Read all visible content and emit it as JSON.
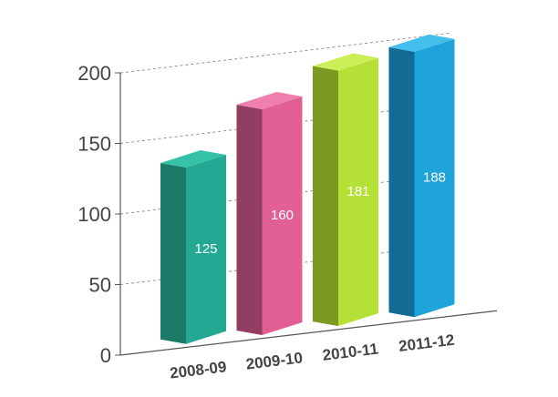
{
  "chart_data": {
    "type": "bar",
    "title": "",
    "xlabel": "",
    "ylabel": "",
    "categories": [
      "2008-09",
      "2009-10",
      "2010-11",
      "2011-12"
    ],
    "values": [
      125,
      160,
      181,
      188
    ],
    "data_labels": [
      "125",
      "160",
      "181",
      "188"
    ],
    "y_ticks": [
      "0",
      "50",
      "100",
      "150",
      "200"
    ],
    "y_tick_values": [
      0,
      50,
      100,
      150,
      200
    ],
    "ylim": [
      0,
      200
    ],
    "grid": true,
    "legend": "none",
    "bar_colors": [
      {
        "front": "#22a893",
        "side": "#1b7a68",
        "top": "#35c2a9"
      },
      {
        "front": "#e15f92",
        "side": "#933d63",
        "top": "#ef7fac"
      },
      {
        "front": "#b5e035",
        "side": "#7a9a22",
        "top": "#cbef56"
      },
      {
        "front": "#1ea3da",
        "side": "#136b96",
        "top": "#43bfec"
      }
    ],
    "axis_color": "#555555",
    "grid_color": "#888888",
    "tick_label_color": "#444444",
    "data_label_color": "#ffffff"
  }
}
